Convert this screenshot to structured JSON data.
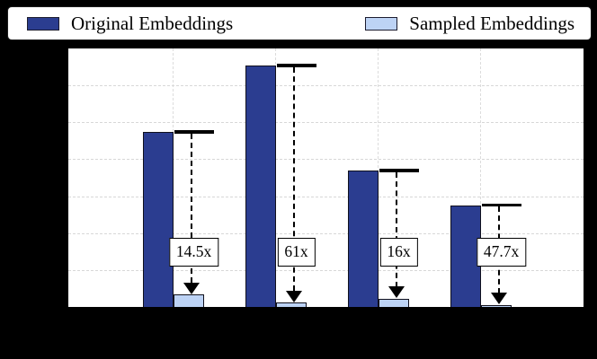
{
  "page": {
    "background": "#000000",
    "plot_background": "#ffffff"
  },
  "legend": {
    "items": [
      {
        "label": "Original Embeddings",
        "color": "#2b3d90"
      },
      {
        "label": "Sampled Embeddings",
        "color": "#bdd3f5"
      }
    ]
  },
  "chart_data": {
    "type": "bar",
    "title": "",
    "categories": [
      "",
      "",
      "",
      ""
    ],
    "series": [
      {
        "name": "Original Embeddings",
        "color": "#2b3d90",
        "values": [
          4.74,
          6.54,
          3.69,
          2.75
        ]
      },
      {
        "name": "Sampled Embeddings",
        "color": "#bdd3f5",
        "values": [
          0.33,
          0.11,
          0.23,
          0.06
        ]
      }
    ],
    "annotations": [
      {
        "label": "14.5x"
      },
      {
        "label": "61x"
      },
      {
        "label": "16x"
      },
      {
        "label": "47.7x"
      }
    ],
    "ylim": [
      0,
      7
    ],
    "grid": true,
    "gridline_step": 1,
    "legend_position": "top",
    "axis_tick_labels_visible": false,
    "bar_edge_color": "#10101c",
    "arrow_color": "#000000",
    "grid_color": "#d7d7d7"
  }
}
